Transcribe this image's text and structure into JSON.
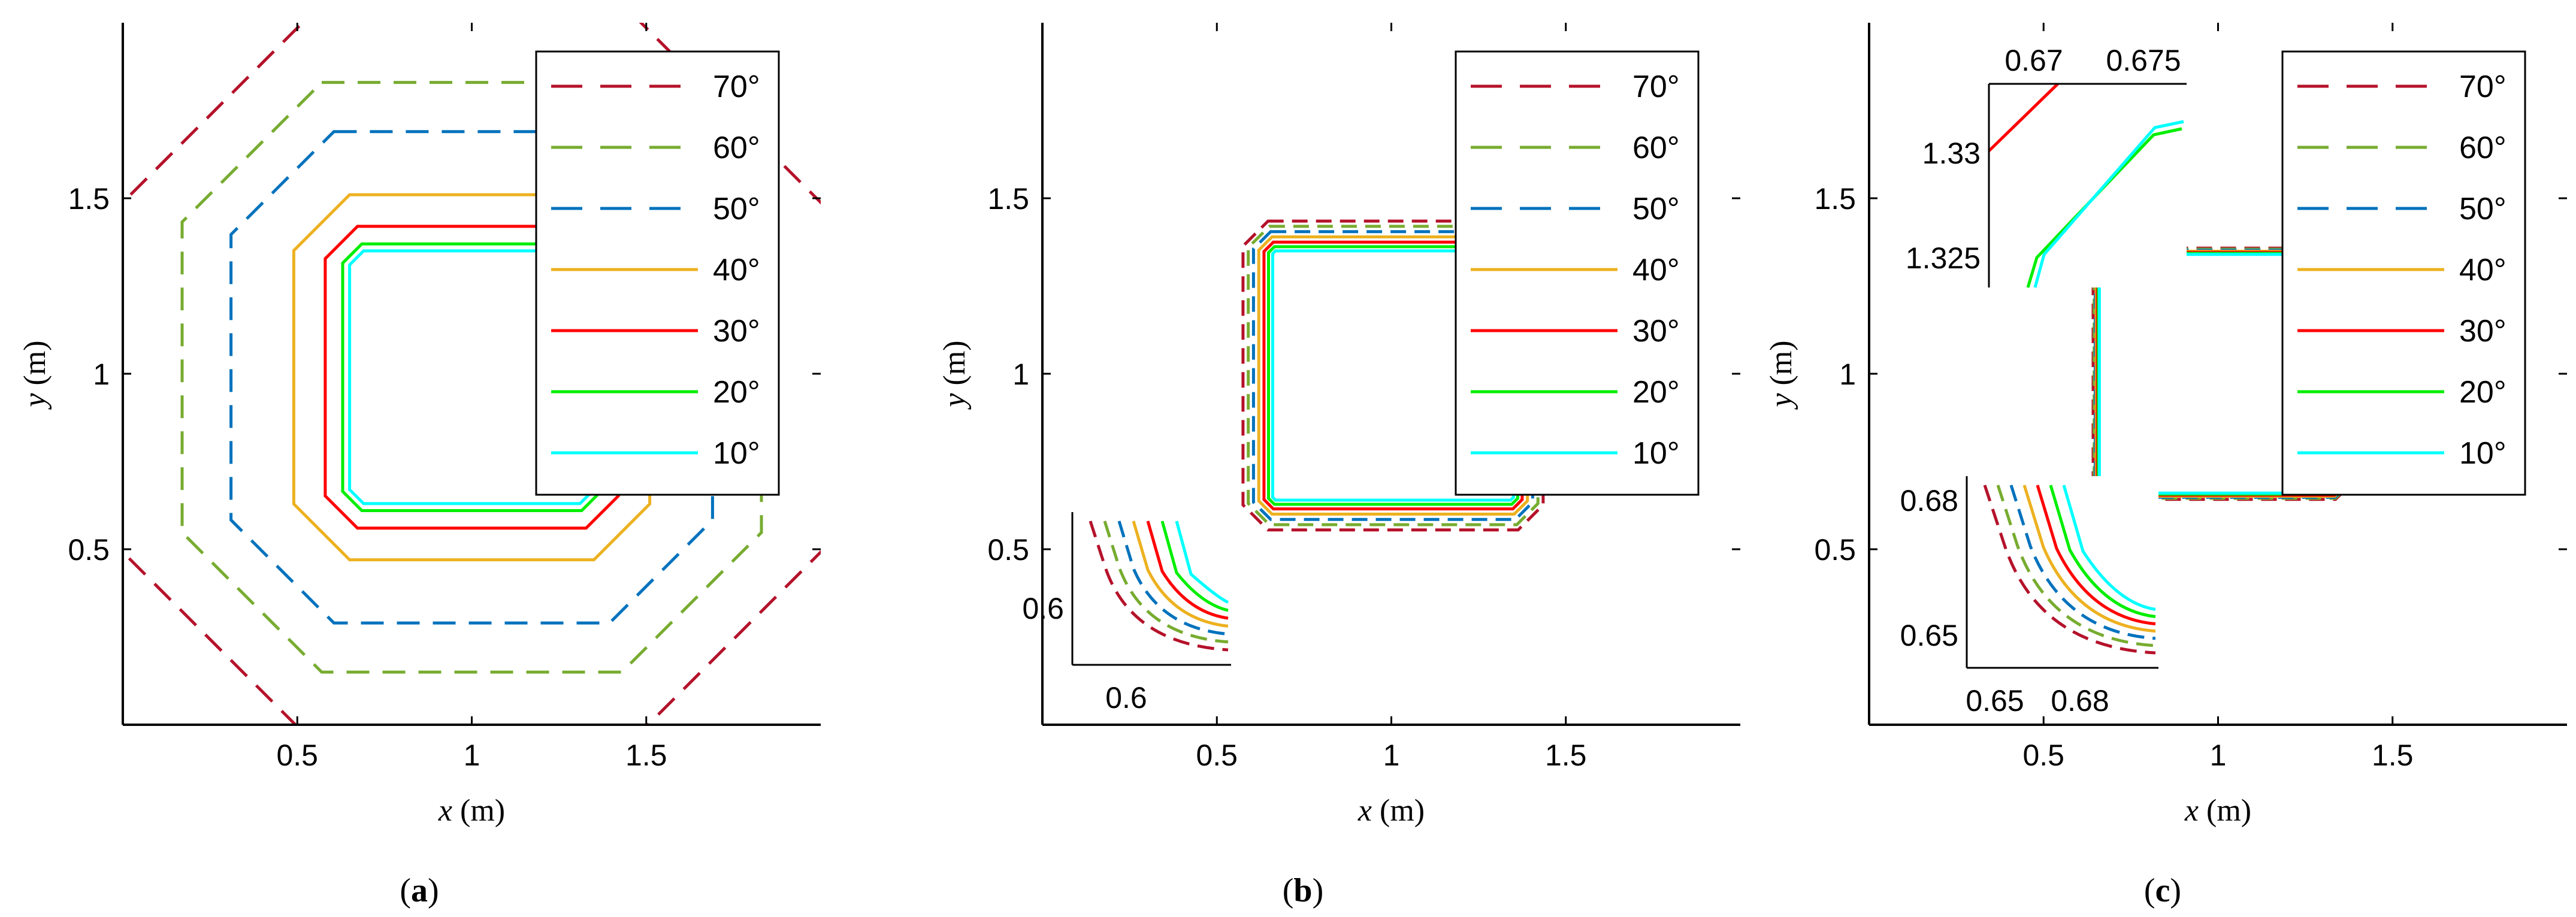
{
  "chart_data": [
    {
      "type": "line",
      "panel_label": [
        "(",
        "a",
        ")"
      ],
      "xlabel": [
        "x",
        " (m)"
      ],
      "ylabel": [
        "y",
        " (m)"
      ],
      "xlim": [
        0,
        2
      ],
      "ylim": [
        0,
        2
      ],
      "xticks": [
        "0.5",
        "1",
        "1.5"
      ],
      "yticks": [
        "0.5",
        "1",
        "1.5"
      ],
      "legend": [
        "70°",
        "60°",
        "50°",
        "40°",
        "30°",
        "20°",
        "10°"
      ],
      "contour_offsets_m": [
        0.66,
        0.48,
        0.34,
        0.16,
        0.07,
        0.02,
        0.0
      ],
      "inner_square": [
        0.65,
        0.63,
        1.35,
        1.35
      ]
    },
    {
      "type": "line",
      "panel_label": [
        "(",
        "b",
        ")"
      ],
      "xlabel": [
        "x",
        " (m)"
      ],
      "ylabel": [
        "y",
        " (m)"
      ],
      "xlim": [
        0,
        2
      ],
      "ylim": [
        0,
        2
      ],
      "xticks": [
        "0.5",
        "1",
        "1.5"
      ],
      "yticks": [
        "0.5",
        "1",
        "1.5"
      ],
      "legend": [
        "70°",
        "60°",
        "50°",
        "40°",
        "30°",
        "20°",
        "10°"
      ],
      "contour_offsets_m": [
        0.085,
        0.07,
        0.055,
        0.04,
        0.025,
        0.012,
        0.0
      ],
      "inner_square": [
        0.66,
        0.64,
        1.35,
        1.35
      ],
      "inset": {
        "xticks": [
          "0.6"
        ],
        "yticks": [
          "0.6"
        ]
      }
    },
    {
      "type": "line",
      "panel_label": [
        "(",
        "c",
        ")"
      ],
      "xlabel": [
        "x",
        " (m)"
      ],
      "ylabel": [
        "y",
        " (m)"
      ],
      "xlim": [
        0,
        2
      ],
      "ylim": [
        0,
        2
      ],
      "xticks": [
        "0.5",
        "1",
        "1.5"
      ],
      "yticks": [
        "0.5",
        "1",
        "1.5"
      ],
      "legend": [
        "70°",
        "60°",
        "50°",
        "40°",
        "30°",
        "20°",
        "10°"
      ],
      "contour_offsets_m": [
        0.018,
        0.015,
        0.012,
        0.009,
        0.006,
        0.003,
        0.0
      ],
      "inner_square": [
        0.66,
        0.66,
        1.34,
        1.34
      ],
      "inset_top": {
        "xticks": [
          "0.67",
          "0.675"
        ],
        "yticks": [
          "1.33",
          "1.325"
        ]
      },
      "inset_bottom": {
        "xticks": [
          "0.65",
          "0.68"
        ],
        "yticks": [
          "0.68",
          "0.65"
        ]
      }
    }
  ],
  "series_styles": [
    {
      "color": "#b5122a",
      "dashed": true
    },
    {
      "color": "#77ac30",
      "dashed": true
    },
    {
      "color": "#0072bd",
      "dashed": true
    },
    {
      "color": "#edb120",
      "dashed": false
    },
    {
      "color": "#ff0000",
      "dashed": false
    },
    {
      "color": "#00ee00",
      "dashed": false
    },
    {
      "color": "#00ffff",
      "dashed": false
    }
  ]
}
